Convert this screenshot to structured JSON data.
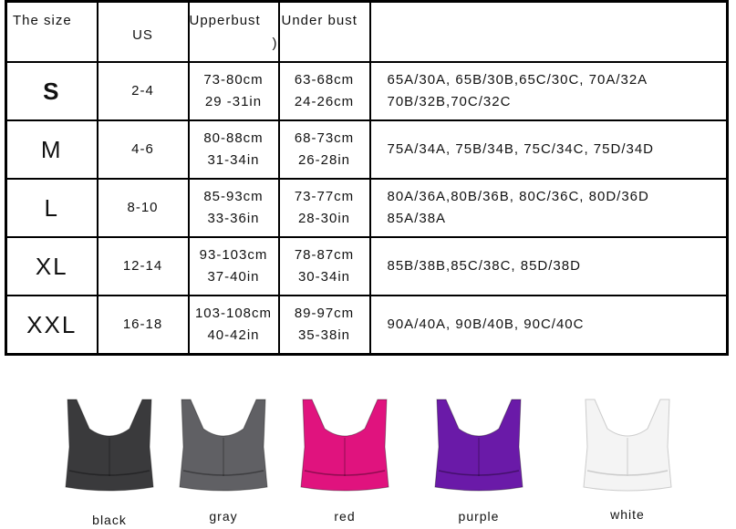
{
  "table": {
    "headers": {
      "size": "The size",
      "us": "US",
      "upperbust": "Upperbust",
      "upperbust_paren": ")",
      "underbust": "Under bust",
      "fit": ""
    },
    "rows": [
      {
        "size": "S",
        "us": "2-4",
        "up1": "73-80cm",
        "up2": "29 -31in",
        "un1": "63-68cm",
        "un2": "24-26cm",
        "fit1": "65A/30A, 65B/30B,65C/30C, 70A/32A",
        "fit2": "70B/32B,70C/32C"
      },
      {
        "size": "M",
        "us": "4-6",
        "up1": "80-88cm",
        "up2": "31-34in",
        "un1": "68-73cm",
        "un2": "26-28in",
        "fit1": "75A/34A, 75B/34B, 75C/34C, 75D/34D",
        "fit2": ""
      },
      {
        "size": "L",
        "us": "8-10",
        "up1": "85-93cm",
        "up2": "33-36in",
        "un1": "73-77cm",
        "un2": "28-30in",
        "fit1": "80A/36A,80B/36B, 80C/36C, 80D/36D",
        "fit2": "85A/38A"
      },
      {
        "size": "XL",
        "us": "12-14",
        "up1": "93-103cm",
        "up2": "37-40in",
        "un1": "78-87cm",
        "un2": "30-34in",
        "fit1": "85B/38B,85C/38C, 85D/38D",
        "fit2": ""
      },
      {
        "size": "XXL",
        "us": "16-18",
        "up1": "103-108cm",
        "up2": "40-42in",
        "un1": "89-97cm",
        "un2": "35-38in",
        "fit1": "90A/40A, 90B/40B, 90C/40C",
        "fit2": ""
      }
    ]
  },
  "products": [
    {
      "label": "black",
      "color": "#3a3a3c"
    },
    {
      "label": "gray",
      "color": "#606064"
    },
    {
      "label": "red",
      "color": "#e0137e"
    },
    {
      "label": "purple",
      "color": "#6a1aa8"
    },
    {
      "label": "white",
      "color": "#f4f4f4"
    }
  ]
}
